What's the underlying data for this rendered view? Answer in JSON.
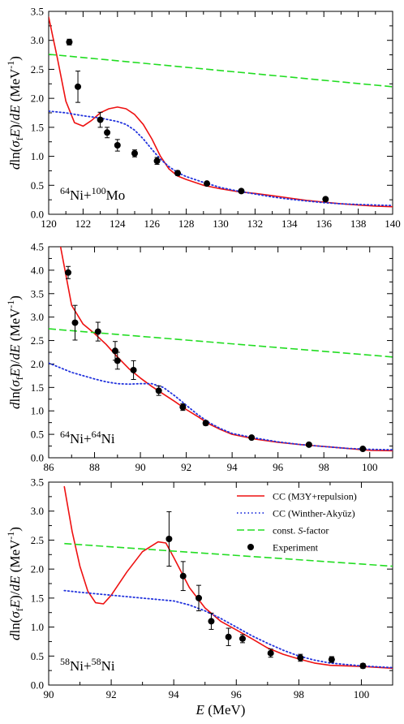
{
  "chart_data": [
    {
      "type": "line",
      "panel_label": {
        "pre": "64",
        "a": "Ni+",
        "pre2": "100",
        "b": "Mo"
      },
      "ylabel": "dln(σfE)/dE (MeV⁻¹)",
      "xlim": [
        120,
        140
      ],
      "ylim": [
        0,
        3.5
      ],
      "xticks": [
        120,
        122,
        124,
        126,
        128,
        130,
        132,
        134,
        136,
        138,
        140
      ],
      "xticklabels": [
        "120",
        "122",
        "124",
        "126",
        "128",
        "130",
        "132",
        "134",
        "136",
        "138",
        "140"
      ],
      "yticks": [
        0,
        0.5,
        1,
        1.5,
        2,
        2.5,
        3,
        3.5
      ],
      "yticklabels": [
        "0.0",
        "0.5",
        "1.0",
        "1.5",
        "2.0",
        "2.5",
        "3.0",
        "3.5"
      ],
      "series": [
        {
          "name": "CC (M3Y+repulsion)",
          "style": "solid",
          "color": "#ee1111",
          "x": [
            120,
            120.5,
            121,
            121.5,
            122,
            122.5,
            123,
            123.5,
            124,
            124.5,
            125,
            125.5,
            126,
            126.5,
            127,
            127.5,
            128,
            129,
            130,
            131,
            132,
            133,
            134,
            135,
            136,
            137,
            138,
            139,
            140
          ],
          "y": [
            3.4,
            2.7,
            1.95,
            1.58,
            1.52,
            1.62,
            1.75,
            1.82,
            1.85,
            1.82,
            1.72,
            1.55,
            1.3,
            1.0,
            0.78,
            0.66,
            0.6,
            0.5,
            0.44,
            0.39,
            0.36,
            0.32,
            0.28,
            0.24,
            0.21,
            0.18,
            0.16,
            0.14,
            0.13
          ]
        },
        {
          "name": "CC (Winther-Akyüz)",
          "style": "dotted",
          "color": "#2233dd",
          "x": [
            120,
            121,
            122,
            123,
            124,
            124.5,
            125,
            125.5,
            126,
            126.5,
            127,
            127.5,
            128,
            129,
            130,
            131,
            132,
            133,
            134,
            135,
            136,
            137,
            138,
            139,
            140
          ],
          "y": [
            1.78,
            1.75,
            1.7,
            1.66,
            1.6,
            1.55,
            1.45,
            1.3,
            1.12,
            0.95,
            0.82,
            0.72,
            0.65,
            0.55,
            0.46,
            0.4,
            0.35,
            0.3,
            0.26,
            0.23,
            0.2,
            0.18,
            0.17,
            0.16,
            0.15
          ]
        },
        {
          "name": "const. S-factor",
          "style": "dashed",
          "color": "#22dd22",
          "x": [
            120,
            140
          ],
          "y": [
            2.76,
            2.2
          ]
        }
      ],
      "points": {
        "name": "Experiment",
        "x": [
          121.2,
          121.7,
          123.0,
          123.4,
          124.0,
          125.0,
          126.3,
          127.5,
          129.2,
          131.2,
          136.1
        ],
        "y": [
          2.97,
          2.2,
          1.63,
          1.41,
          1.19,
          1.05,
          0.92,
          0.71,
          0.53,
          0.4,
          0.26
        ],
        "err": [
          0.05,
          0.27,
          0.13,
          0.09,
          0.1,
          0.06,
          0.06,
          0.04,
          0.03,
          0.03,
          0.03
        ]
      }
    },
    {
      "type": "line",
      "panel_label": {
        "pre": "64",
        "a": "Ni+",
        "pre2": "64",
        "b": "Ni"
      },
      "ylabel": "dln(σfE)/dE (MeV⁻¹)",
      "xlim": [
        86,
        101
      ],
      "ylim": [
        0,
        4.5
      ],
      "xticks": [
        86,
        88,
        90,
        92,
        94,
        96,
        98,
        100
      ],
      "xticklabels": [
        "86",
        "88",
        "90",
        "92",
        "94",
        "96",
        "98",
        "100"
      ],
      "yticks": [
        0,
        0.5,
        1,
        1.5,
        2,
        2.5,
        3,
        3.5,
        4,
        4.5
      ],
      "yticklabels": [
        "0.0",
        "0.5",
        "1.0",
        "1.5",
        "2.0",
        "2.5",
        "3.0",
        "3.5",
        "4.0",
        "4.5"
      ],
      "series": [
        {
          "name": "CC (M3Y+repulsion)",
          "style": "solid",
          "color": "#ee1111",
          "x": [
            86.5,
            86.75,
            87,
            87.5,
            88,
            88.5,
            89,
            89.5,
            90,
            90.5,
            91,
            91.5,
            92,
            92.5,
            93,
            93.5,
            94,
            95,
            96,
            97,
            98,
            99,
            100,
            101
          ],
          "y": [
            4.55,
            3.9,
            3.25,
            2.85,
            2.65,
            2.42,
            2.15,
            1.9,
            1.7,
            1.52,
            1.36,
            1.2,
            1.03,
            0.88,
            0.72,
            0.6,
            0.5,
            0.4,
            0.33,
            0.28,
            0.24,
            0.2,
            0.16,
            0.15
          ]
        },
        {
          "name": "CC (Winther-Akyüz)",
          "style": "dotted",
          "color": "#2233dd",
          "x": [
            86,
            87,
            88,
            88.5,
            89,
            89.5,
            90,
            90.5,
            91,
            91.5,
            92,
            92.5,
            93,
            93.5,
            94,
            95,
            96,
            97,
            98,
            99,
            100,
            101
          ],
          "y": [
            2.02,
            1.82,
            1.68,
            1.62,
            1.58,
            1.57,
            1.58,
            1.58,
            1.5,
            1.32,
            1.12,
            0.92,
            0.75,
            0.62,
            0.52,
            0.42,
            0.34,
            0.28,
            0.24,
            0.2,
            0.18,
            0.17
          ]
        },
        {
          "name": "const. S-factor",
          "style": "dashed",
          "color": "#22dd22",
          "x": [
            86,
            101
          ],
          "y": [
            2.75,
            2.15
          ]
        }
      ],
      "points": {
        "name": "Experiment",
        "x": [
          86.85,
          87.15,
          88.15,
          88.9,
          89.0,
          89.7,
          90.8,
          91.85,
          92.85,
          94.85,
          97.35,
          99.7
        ],
        "y": [
          3.95,
          2.88,
          2.69,
          2.28,
          2.07,
          1.87,
          1.43,
          1.08,
          0.74,
          0.43,
          0.28,
          0.19
        ],
        "err": [
          0.13,
          0.37,
          0.2,
          0.2,
          0.18,
          0.2,
          0.1,
          0.07,
          0.05,
          0.03,
          0.02,
          0.02
        ]
      }
    },
    {
      "type": "line",
      "panel_label": {
        "pre": "58",
        "a": "Ni+",
        "pre2": "58",
        "b": "Ni"
      },
      "ylabel": "dln(σfE)/dE (MeV⁻¹)",
      "xlabel": "E (MeV)",
      "xlim": [
        90,
        101
      ],
      "ylim": [
        0,
        3.5
      ],
      "xticks": [
        90,
        92,
        94,
        96,
        98,
        100
      ],
      "xticklabels": [
        "90",
        "92",
        "94",
        "96",
        "98",
        "100"
      ],
      "yticks": [
        0,
        0.5,
        1,
        1.5,
        2,
        2.5,
        3,
        3.5
      ],
      "yticklabels": [
        "0.0",
        "0.5",
        "1.0",
        "1.5",
        "2.0",
        "2.5",
        "3.0",
        "3.5"
      ],
      "legend": {
        "placement": "top-right"
      },
      "series": [
        {
          "name": "CC (M3Y+repulsion)",
          "style": "solid",
          "color": "#ee1111",
          "x": [
            90.5,
            90.75,
            91,
            91.25,
            91.5,
            91.75,
            92,
            92.5,
            93,
            93.5,
            93.75,
            94,
            94.5,
            95,
            95.5,
            96,
            96.5,
            97,
            97.5,
            98,
            98.5,
            99,
            100,
            101
          ],
          "y": [
            3.42,
            2.65,
            2.05,
            1.62,
            1.42,
            1.4,
            1.55,
            1.95,
            2.3,
            2.47,
            2.45,
            2.2,
            1.68,
            1.33,
            1.1,
            0.95,
            0.8,
            0.64,
            0.53,
            0.45,
            0.38,
            0.34,
            0.32,
            0.29
          ]
        },
        {
          "name": "CC (Winther-Akyüz)",
          "style": "dotted",
          "color": "#2233dd",
          "x": [
            90.5,
            91,
            92,
            93,
            94,
            94.5,
            95,
            95.5,
            96,
            96.5,
            97,
            97.5,
            98,
            98.5,
            99,
            100,
            101
          ],
          "y": [
            1.63,
            1.6,
            1.55,
            1.5,
            1.45,
            1.38,
            1.28,
            1.15,
            1.0,
            0.85,
            0.72,
            0.6,
            0.5,
            0.43,
            0.38,
            0.33,
            0.3
          ]
        },
        {
          "name": "const. S-factor",
          "style": "dashed",
          "color": "#22dd22",
          "x": [
            90.5,
            101
          ],
          "y": [
            2.44,
            2.05
          ]
        }
      ],
      "points": {
        "name": "Experiment",
        "x": [
          93.85,
          94.3,
          94.8,
          95.2,
          95.75,
          96.2,
          97.1,
          98.05,
          99.05,
          100.05
        ],
        "y": [
          2.52,
          1.88,
          1.5,
          1.1,
          0.83,
          0.8,
          0.55,
          0.47,
          0.44,
          0.33
        ],
        "err": [
          0.47,
          0.25,
          0.22,
          0.14,
          0.15,
          0.07,
          0.07,
          0.06,
          0.05,
          0.04
        ]
      }
    }
  ]
}
